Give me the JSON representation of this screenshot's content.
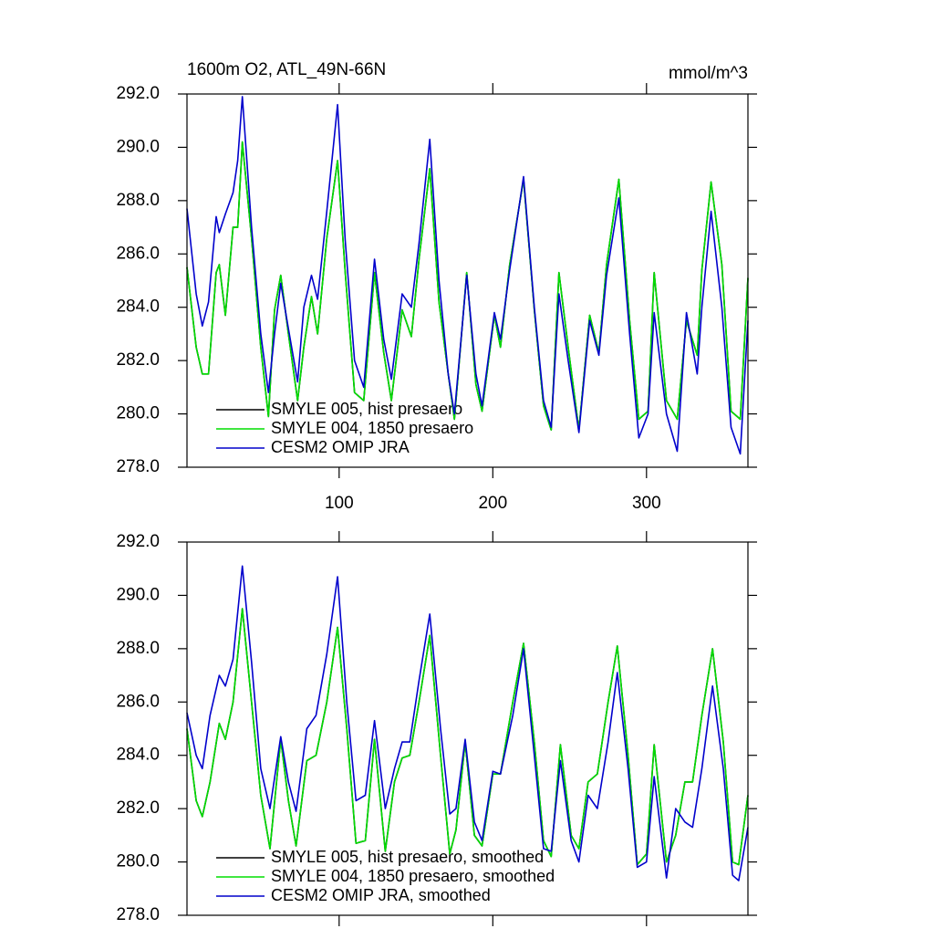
{
  "chart_data": [
    {
      "type": "line",
      "title": "1600m O2, ATL_49N-66N",
      "units": "mmol/m^3",
      "x": [
        1,
        7,
        11,
        15,
        20,
        22,
        26,
        31,
        34,
        37,
        43,
        49,
        54,
        58,
        62,
        67,
        73,
        77,
        82,
        86,
        92,
        99,
        104,
        110,
        116,
        123,
        129,
        134,
        141,
        147,
        152,
        159,
        165,
        171,
        175,
        183,
        189,
        193,
        201,
        205,
        211,
        220,
        227,
        233,
        238,
        243,
        249,
        256,
        263,
        269,
        274,
        282,
        289,
        295,
        301,
        305,
        313,
        320,
        326,
        333,
        336,
        342,
        349,
        355,
        361,
        366
      ],
      "series": [
        {
          "name": "SMYLE 005, hist presaero",
          "color": "#000000",
          "values": [
            285.5,
            282.5,
            281.5,
            281.5,
            285.3,
            285.6,
            283.7,
            287,
            287,
            290.2,
            286.6,
            282.5,
            279.9,
            283.9,
            285.2,
            283.0,
            280.5,
            282.5,
            284.4,
            283.0,
            286.6,
            289.5,
            285.3,
            280.8,
            280.5,
            285.3,
            282.3,
            280.5,
            283.9,
            282.9,
            285.8,
            289.2,
            284.2,
            281.5,
            279.8,
            285.3,
            281.1,
            280.1,
            283.7,
            282.5,
            285.6,
            288.8,
            283.9,
            280.3,
            279.4,
            285.3,
            282.5,
            279.4,
            283.7,
            282.3,
            285.6,
            288.8,
            283.5,
            279.8,
            280.1,
            285.3,
            280.5,
            279.8,
            283.5,
            282.2,
            285.4,
            288.7,
            285.6,
            280.1,
            279.8,
            285.1
          ]
        },
        {
          "name": "SMYLE 004, 1850 presaero",
          "color": "#00dd00",
          "values": [
            285.5,
            282.5,
            281.5,
            281.5,
            285.3,
            285.6,
            283.7,
            287,
            287,
            290.2,
            286.6,
            282.5,
            279.9,
            283.9,
            285.2,
            283.0,
            280.5,
            282.5,
            284.4,
            283.0,
            286.6,
            289.5,
            285.3,
            280.8,
            280.5,
            285.3,
            282.3,
            280.5,
            283.9,
            282.9,
            285.8,
            289.2,
            284.2,
            281.5,
            279.8,
            285.3,
            281.1,
            280.1,
            283.7,
            282.5,
            285.6,
            288.8,
            283.9,
            280.3,
            279.4,
            285.3,
            282.5,
            279.4,
            283.7,
            282.3,
            285.6,
            288.8,
            283.5,
            279.8,
            280.1,
            285.3,
            280.5,
            279.8,
            283.5,
            282.2,
            285.4,
            288.7,
            285.6,
            280.1,
            279.8,
            285.1
          ]
        },
        {
          "name": "CESM2 OMIP JRA",
          "color": "#0000cc",
          "values": [
            287.7,
            284.5,
            283.3,
            284.2,
            287.4,
            286.8,
            287.5,
            288.3,
            289.5,
            291.9,
            287.0,
            283.0,
            280.8,
            283.0,
            284.9,
            283.2,
            281.2,
            284.0,
            285.2,
            284.3,
            287.6,
            291.6,
            286.5,
            282.0,
            281.0,
            285.8,
            282.8,
            281.3,
            284.5,
            284.0,
            286.4,
            290.3,
            285.0,
            281.5,
            280.0,
            285.2,
            281.5,
            280.3,
            283.8,
            282.8,
            285.4,
            288.9,
            284.0,
            280.5,
            279.5,
            284.5,
            282.0,
            279.3,
            283.5,
            282.2,
            285.2,
            288.1,
            283.0,
            279.1,
            280.0,
            283.8,
            280.0,
            278.6,
            283.8,
            281.5,
            284.0,
            287.6,
            284.0,
            279.5,
            278.5,
            283.5
          ]
        }
      ],
      "xlim": [
        1,
        366
      ],
      "xticks": [
        100,
        200,
        300
      ],
      "ylim": [
        278,
        292
      ],
      "yticks": [
        {
          "value": 278,
          "label": "278.0"
        },
        {
          "value": 280,
          "label": "280.0"
        },
        {
          "value": 282,
          "label": "282.0"
        },
        {
          "value": 284,
          "label": "284.0"
        },
        {
          "value": 286,
          "label": "286.0"
        },
        {
          "value": 288,
          "label": "288.0"
        },
        {
          "value": 290,
          "label": "290.0"
        },
        {
          "value": 292,
          "label": "292.0"
        }
      ]
    },
    {
      "type": "line",
      "x": [
        1,
        7,
        11,
        16,
        22,
        26,
        31,
        37,
        43,
        49,
        55,
        62,
        67,
        72,
        79,
        85,
        92,
        99,
        105,
        111,
        117,
        123,
        130,
        136,
        141,
        146,
        152,
        159,
        166,
        172,
        176,
        182,
        188,
        193,
        200,
        205,
        213,
        220,
        227,
        233,
        238,
        244,
        251,
        256,
        262,
        268,
        275,
        281,
        288,
        294,
        300,
        305,
        313,
        319,
        325,
        330,
        336,
        343,
        350,
        356,
        360,
        366
      ],
      "series": [
        {
          "name": "SMYLE 005, hist presaero, smoothed",
          "color": "#000000",
          "values": [
            285.0,
            282.3,
            281.7,
            283.0,
            285.2,
            284.6,
            286.0,
            289.5,
            286.0,
            282.5,
            280.5,
            284.6,
            282.3,
            280.6,
            283.8,
            284.0,
            286.0,
            288.8,
            285.0,
            280.7,
            280.8,
            284.6,
            280.4,
            283.0,
            283.9,
            284.0,
            286.0,
            288.5,
            284.0,
            280.3,
            281.2,
            284.5,
            281.0,
            280.6,
            283.3,
            283.3,
            286.0,
            288.2,
            284.5,
            280.8,
            280.2,
            284.4,
            281.0,
            280.5,
            283.0,
            283.3,
            286.0,
            288.1,
            284.0,
            279.9,
            280.3,
            284.4,
            280.0,
            281.0,
            283.0,
            283.0,
            285.5,
            288.0,
            284.5,
            280.0,
            279.9,
            282.5
          ]
        },
        {
          "name": "SMYLE 004, 1850 presaero, smoothed",
          "color": "#00dd00",
          "values": [
            285.0,
            282.3,
            281.7,
            283.0,
            285.2,
            284.6,
            286.0,
            289.5,
            286.0,
            282.5,
            280.5,
            284.6,
            282.3,
            280.6,
            283.8,
            284.0,
            286.0,
            288.8,
            285.0,
            280.7,
            280.8,
            284.6,
            280.4,
            283.0,
            283.9,
            284.0,
            286.0,
            288.5,
            284.0,
            280.3,
            281.2,
            284.5,
            281.0,
            280.6,
            283.3,
            283.3,
            286.0,
            288.2,
            284.5,
            280.8,
            280.2,
            284.4,
            281.0,
            280.5,
            283.0,
            283.3,
            286.0,
            288.1,
            284.0,
            279.9,
            280.3,
            284.4,
            280.0,
            281.0,
            283.0,
            283.0,
            285.5,
            288.0,
            284.5,
            280.0,
            279.9,
            282.5
          ]
        },
        {
          "name": "CESM2 OMIP JRA, smoothed",
          "color": "#0000cc",
          "values": [
            285.6,
            284.0,
            283.5,
            285.5,
            287.0,
            286.6,
            287.6,
            291.1,
            287.5,
            283.5,
            282.0,
            284.7,
            283.0,
            281.9,
            285.0,
            285.5,
            287.8,
            290.7,
            286.0,
            282.3,
            282.5,
            285.3,
            282.0,
            283.5,
            284.5,
            284.5,
            286.8,
            289.3,
            285.0,
            281.8,
            282.0,
            284.6,
            281.5,
            280.8,
            283.4,
            283.3,
            285.5,
            288.0,
            284.0,
            280.5,
            280.4,
            283.8,
            280.8,
            280.0,
            282.5,
            282.0,
            284.5,
            287.1,
            283.5,
            279.8,
            280.0,
            283.2,
            279.4,
            282.0,
            281.5,
            281.3,
            283.5,
            286.6,
            283.5,
            279.5,
            279.3,
            281.3
          ]
        }
      ],
      "xlim": [
        1,
        366
      ],
      "xticks": [
        100,
        200,
        300
      ],
      "ylim": [
        278,
        292
      ],
      "yticks": [
        {
          "value": 278,
          "label": "278.0"
        },
        {
          "value": 280,
          "label": "280.0"
        },
        {
          "value": 282,
          "label": "282.0"
        },
        {
          "value": 284,
          "label": "284.0"
        },
        {
          "value": 286,
          "label": "286.0"
        },
        {
          "value": 288,
          "label": "288.0"
        },
        {
          "value": 290,
          "label": "290.0"
        },
        {
          "value": 292,
          "label": "292.0"
        }
      ]
    }
  ]
}
